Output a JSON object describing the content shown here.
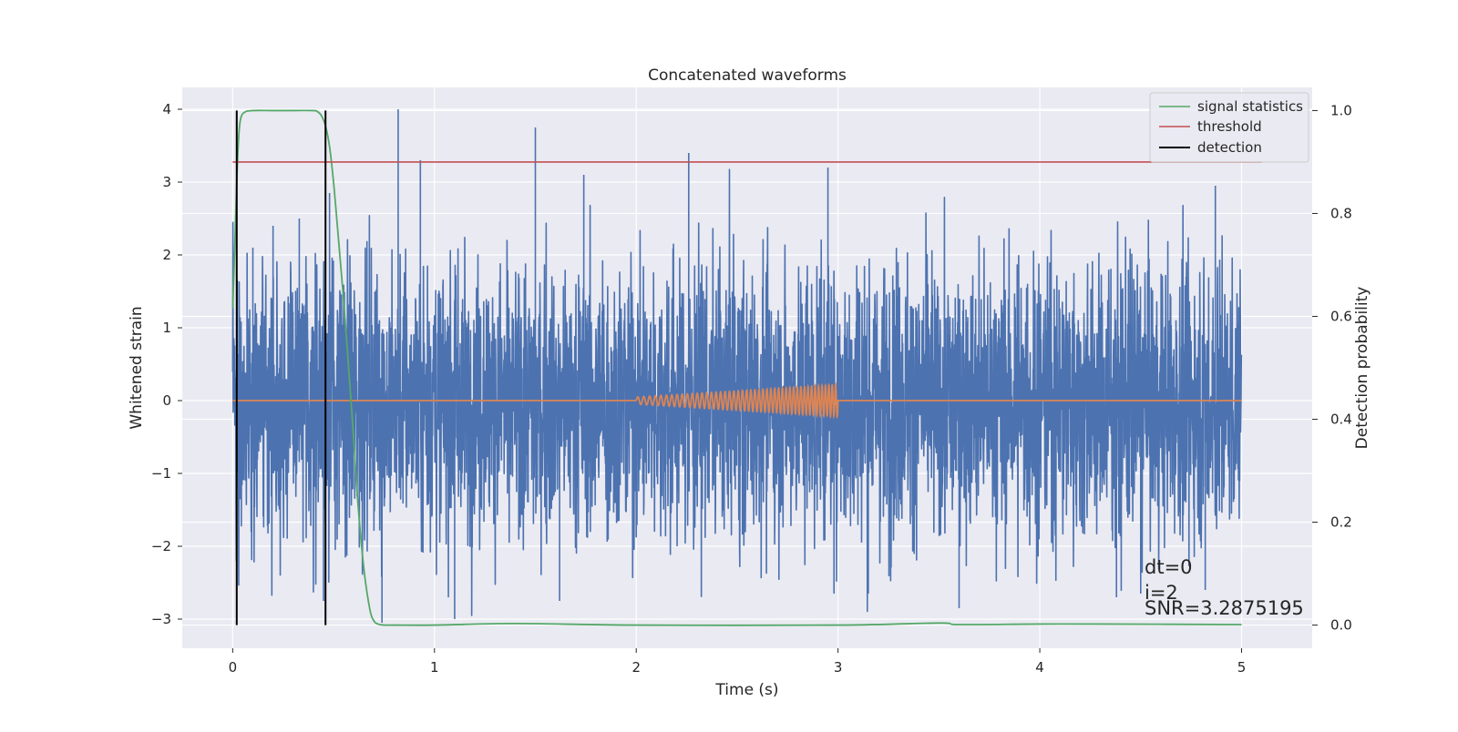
{
  "chart_data": {
    "type": "line",
    "title": "Concatenated waveforms",
    "xlabel": "Time (s)",
    "ylabel": "Whitened strain",
    "ylabel_right": "Detection probability",
    "xlim": [
      -0.25,
      5.35
    ],
    "ylim": [
      -3.4,
      4.3
    ],
    "ylim_right": [
      -0.045,
      1.045
    ],
    "xticks": [
      0,
      1,
      2,
      3,
      4,
      5
    ],
    "yticks": [
      -3,
      -2,
      -1,
      0,
      1,
      2,
      3,
      4
    ],
    "yticks_right": [
      0.0,
      0.2,
      0.4,
      0.6,
      0.8,
      1.0
    ],
    "xtick_labels": [
      "0",
      "1",
      "2",
      "3",
      "4",
      "5"
    ],
    "ytick_labels": [
      "−3",
      "−2",
      "−1",
      "0",
      "1",
      "2",
      "3",
      "4"
    ],
    "ytick_right_labels": [
      "0.0",
      "0.2",
      "0.4",
      "0.6",
      "0.8",
      "1.0"
    ],
    "grid": true,
    "legend_position": "top-right",
    "colors": {
      "strain": "#4c72b0",
      "template": "#dd8452",
      "signal_statistics": "#55a868",
      "threshold": "#c44e52",
      "detection": "#000000",
      "axes_bg": "#eaeaf2",
      "grid": "#ffffff"
    },
    "series": [
      {
        "name": "",
        "kind": "whitened_strain",
        "x_range": [
          0,
          5
        ],
        "envelope": {
          "typical_amplitude": 1.5,
          "max": 4.0,
          "min": -3.1
        },
        "peaks": [
          {
            "x": 0.82,
            "y": 4.0
          },
          {
            "x": 0.93,
            "y": 3.3
          },
          {
            "x": 1.5,
            "y": 3.75
          },
          {
            "x": 1.74,
            "y": 3.1
          },
          {
            "x": 2.26,
            "y": 3.4
          },
          {
            "x": 2.95,
            "y": 3.2
          },
          {
            "x": 4.87,
            "y": 2.95
          },
          {
            "x": 0.48,
            "y": 2.85
          },
          {
            "x": 0.1,
            "y": 2.1
          },
          {
            "x": 0.2,
            "y": 2.4
          },
          {
            "x": 0.33,
            "y": 2.5
          },
          {
            "x": 0.74,
            "y": -3.05
          },
          {
            "x": 1.1,
            "y": -3.0
          },
          {
            "x": 0.45,
            "y": -2.75
          },
          {
            "x": 1.62,
            "y": -2.75
          },
          {
            "x": 2.98,
            "y": -2.65
          },
          {
            "x": 3.15,
            "y": -2.65
          },
          {
            "x": 3.6,
            "y": -2.85
          },
          {
            "x": 4.38,
            "y": -2.7
          },
          {
            "x": 4.5,
            "y": -2.65
          },
          {
            "x": 4.82,
            "y": -2.6
          },
          {
            "x": 3.7,
            "y": -0.5
          }
        ]
      },
      {
        "name": "",
        "kind": "template",
        "baseline": 0,
        "chirp_x_range": [
          2.0,
          3.0
        ],
        "chirp_amplitude_range": [
          0.05,
          0.22
        ],
        "x_range": [
          0,
          5
        ]
      },
      {
        "name": "signal statistics",
        "axis": "right",
        "x": [
          0,
          0.01,
          0.02,
          0.03,
          0.04,
          0.06,
          0.1,
          0.2,
          0.3,
          0.4,
          0.42,
          0.44,
          0.46,
          0.48,
          0.5,
          0.52,
          0.55,
          0.58,
          0.6,
          0.62,
          0.65,
          0.68,
          0.7,
          0.72,
          0.75,
          0.8,
          1.0,
          1.4,
          2.0,
          3.0,
          3.5,
          3.6,
          4.0,
          4.3,
          5.0
        ],
        "y": [
          0.615,
          0.73,
          0.86,
          0.95,
          0.985,
          0.997,
          1.0,
          1.0,
          1.0,
          1.0,
          0.998,
          0.99,
          0.97,
          0.93,
          0.86,
          0.77,
          0.63,
          0.47,
          0.36,
          0.24,
          0.11,
          0.03,
          0.008,
          0.002,
          0.0,
          0.0,
          0.0,
          0.003,
          0.0,
          0.0,
          0.004,
          0.001,
          0.002,
          0.002,
          0.001
        ]
      },
      {
        "name": "threshold",
        "axis": "right",
        "x": [
          0,
          5.1
        ],
        "y": [
          0.9,
          0.9
        ]
      },
      {
        "name": "detection",
        "axis": "right",
        "x": [
          0.02,
          0.46
        ],
        "y_range": [
          0.0,
          1.0
        ]
      }
    ],
    "annotations": [
      "dt=0",
      "i=2",
      "SNR=3.2875195"
    ]
  }
}
